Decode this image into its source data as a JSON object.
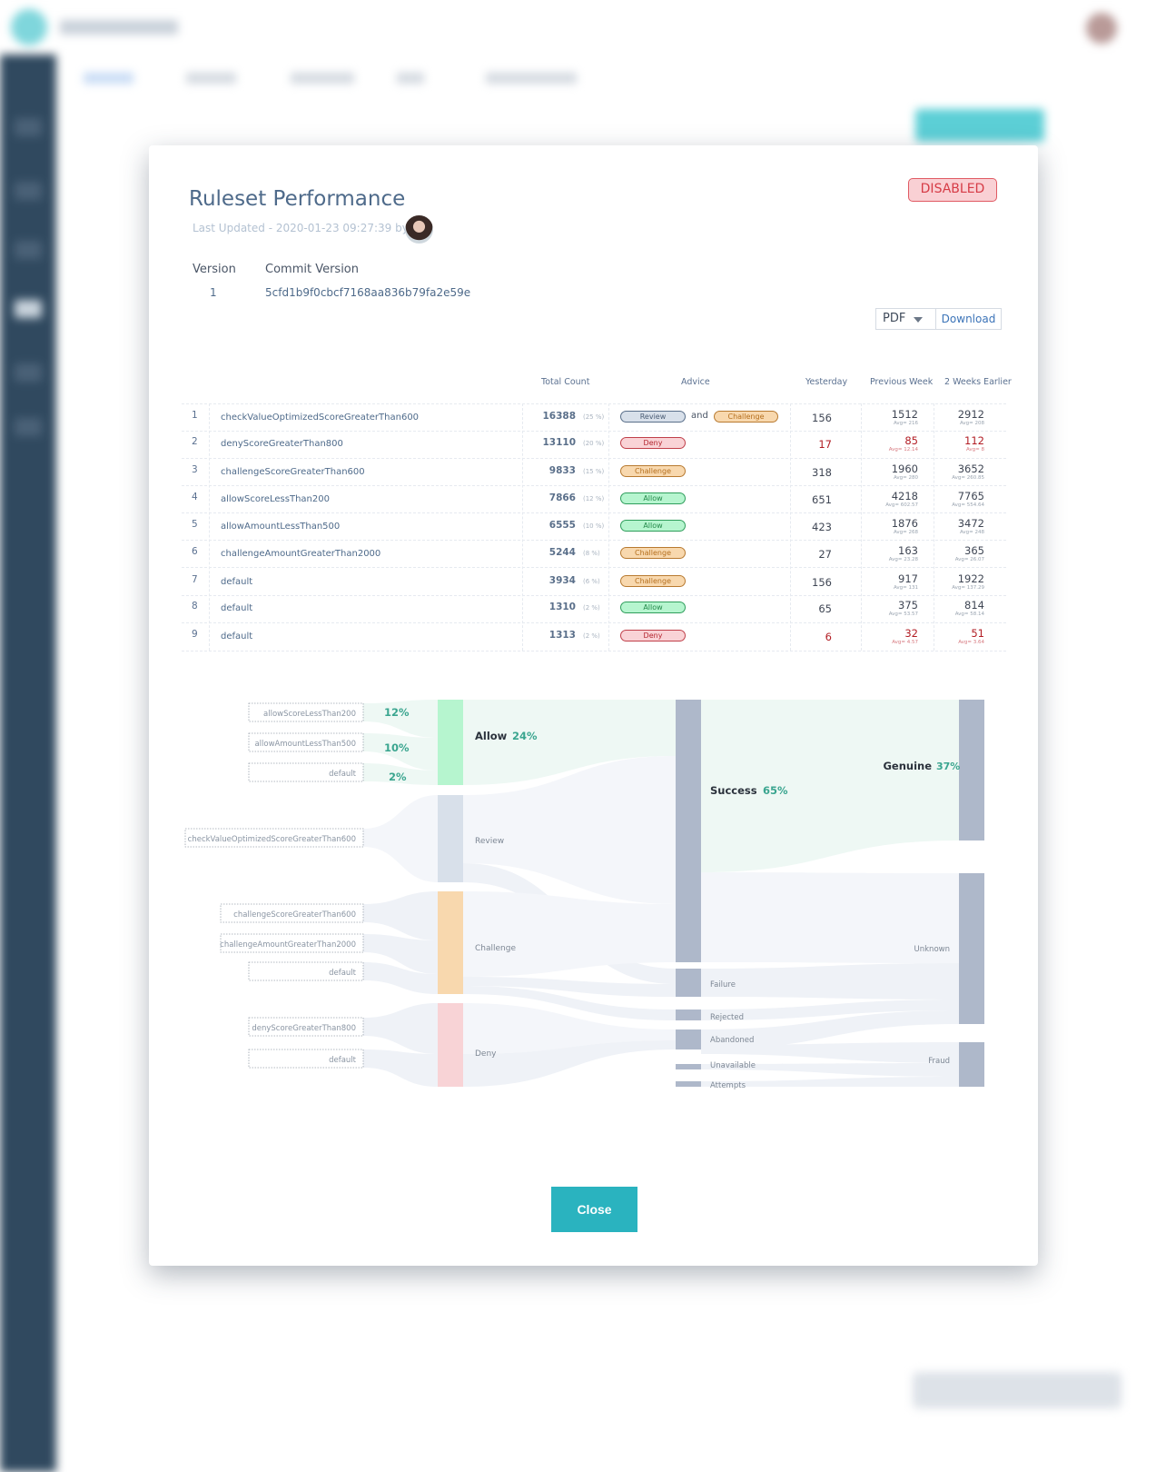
{
  "modal": {
    "title": "Ruleset Performance",
    "last_updated": "Last Updated - 2020-01-23 09:27:39 by",
    "status_badge": "DISABLED",
    "version_label": "Version",
    "version_value": "1",
    "commit_label": "Commit Version",
    "commit_value": "5cfd1b9f0cbcf7168aa836b79fa2e59e",
    "export_format": "PDF",
    "download_label": "Download",
    "close_label": "Close"
  },
  "table": {
    "headers": [
      "Total Count",
      "Advice",
      "Yesterday",
      "Previous Week",
      "2 Weeks Earlier"
    ],
    "advice_joiner": "and",
    "rows": [
      {
        "n": "1",
        "rule": "checkValueOptimizedScoreGreaterThan600",
        "count": "16388",
        "pct": "(25 %)",
        "advice": [
          "Review",
          "Challenge"
        ],
        "yesterday": "156",
        "prev": "1512",
        "prev_avg": "Avg= 216",
        "prev2": "2912",
        "prev2_avg": "Avg= 208",
        "alert": false
      },
      {
        "n": "2",
        "rule": "denyScoreGreaterThan800",
        "count": "13110",
        "pct": "(20 %)",
        "advice": [
          "Deny"
        ],
        "yesterday": "17",
        "prev": "85",
        "prev_avg": "Avg= 12.14",
        "prev2": "112",
        "prev2_avg": "Avg= 8",
        "alert": true
      },
      {
        "n": "3",
        "rule": "challengeScoreGreaterThan600",
        "count": "9833",
        "pct": "(15 %)",
        "advice": [
          "Challenge"
        ],
        "yesterday": "318",
        "prev": "1960",
        "prev_avg": "Avg= 280",
        "prev2": "3652",
        "prev2_avg": "Avg= 260.85",
        "alert": false
      },
      {
        "n": "4",
        "rule": "allowScoreLessThan200",
        "count": "7866",
        "pct": "(12 %)",
        "advice": [
          "Allow"
        ],
        "yesterday": "651",
        "prev": "4218",
        "prev_avg": "Avg= 602.57",
        "prev2": "7765",
        "prev2_avg": "Avg= 554.64",
        "alert": false
      },
      {
        "n": "5",
        "rule": "allowAmountLessThan500",
        "count": "6555",
        "pct": "(10 %)",
        "advice": [
          "Allow"
        ],
        "yesterday": "423",
        "prev": "1876",
        "prev_avg": "Avg= 268",
        "prev2": "3472",
        "prev2_avg": "Avg= 248",
        "alert": false
      },
      {
        "n": "6",
        "rule": "challengeAmountGreaterThan2000",
        "count": "5244",
        "pct": "(8 %)",
        "advice": [
          "Challenge"
        ],
        "yesterday": "27",
        "prev": "163",
        "prev_avg": "Avg= 23.28",
        "prev2": "365",
        "prev2_avg": "Avg= 26.07",
        "alert": false
      },
      {
        "n": "7",
        "rule": "default",
        "count": "3934",
        "pct": "(6 %)",
        "advice": [
          "Challenge"
        ],
        "yesterday": "156",
        "prev": "917",
        "prev_avg": "Avg= 131",
        "prev2": "1922",
        "prev2_avg": "Avg= 137.29",
        "alert": false
      },
      {
        "n": "8",
        "rule": "default",
        "count": "1310",
        "pct": "(2 %)",
        "advice": [
          "Allow"
        ],
        "yesterday": "65",
        "prev": "375",
        "prev_avg": "Avg= 53.57",
        "prev2": "814",
        "prev2_avg": "Avg= 58.14",
        "alert": false
      },
      {
        "n": "9",
        "rule": "default",
        "count": "1313",
        "pct": "(2 %)",
        "advice": [
          "Deny"
        ],
        "yesterday": "6",
        "prev": "32",
        "prev_avg": "Avg= 4.57",
        "prev2": "51",
        "prev2_avg": "Avg= 3.64",
        "alert": true
      }
    ]
  },
  "advice_colors": {
    "Review": [
      "#d8e0ea",
      "#5a6f8a",
      "#4b5d75"
    ],
    "Challenge": [
      "#f8d8ae",
      "#b87a30",
      "#b56f1e"
    ],
    "Deny": [
      "#f9d3d6",
      "#c0404a",
      "#b3262f"
    ],
    "Allow": [
      "#b6f5cf",
      "#2f9e5c",
      "#23894a"
    ]
  },
  "sankey": {
    "rules": [
      "allowScoreLessThan200",
      "allowAmountLessThan500",
      "default",
      "checkValueOptimizedScoreGreaterThan600",
      "challengeScoreGreaterThan600",
      "challengeAmountGreaterThan2000",
      "default",
      "denyScoreGreaterThan800",
      "default"
    ],
    "rule_pcts": [
      "12%",
      "10%",
      "2%"
    ],
    "advice": [
      {
        "name": "Allow",
        "pct": "24%",
        "color": "#b6f5cf"
      },
      {
        "name": "Review",
        "color": "#d8e0ea"
      },
      {
        "name": "Challenge",
        "color": "#f8d8ae"
      },
      {
        "name": "Deny",
        "color": "#f8d3d6"
      }
    ],
    "outcomes": [
      {
        "name": "Success",
        "pct": "65%"
      },
      {
        "name": "Failure"
      },
      {
        "name": "Rejected"
      },
      {
        "name": "Abandoned"
      },
      {
        "name": "Unavailable"
      },
      {
        "name": "Attempts"
      }
    ],
    "labels": [
      {
        "name": "Genuine",
        "pct": "37%"
      },
      {
        "name": "Unknown"
      },
      {
        "name": "Fraud"
      }
    ],
    "node_color": "#aeb8ca",
    "pct_color": "#3aa58f"
  }
}
